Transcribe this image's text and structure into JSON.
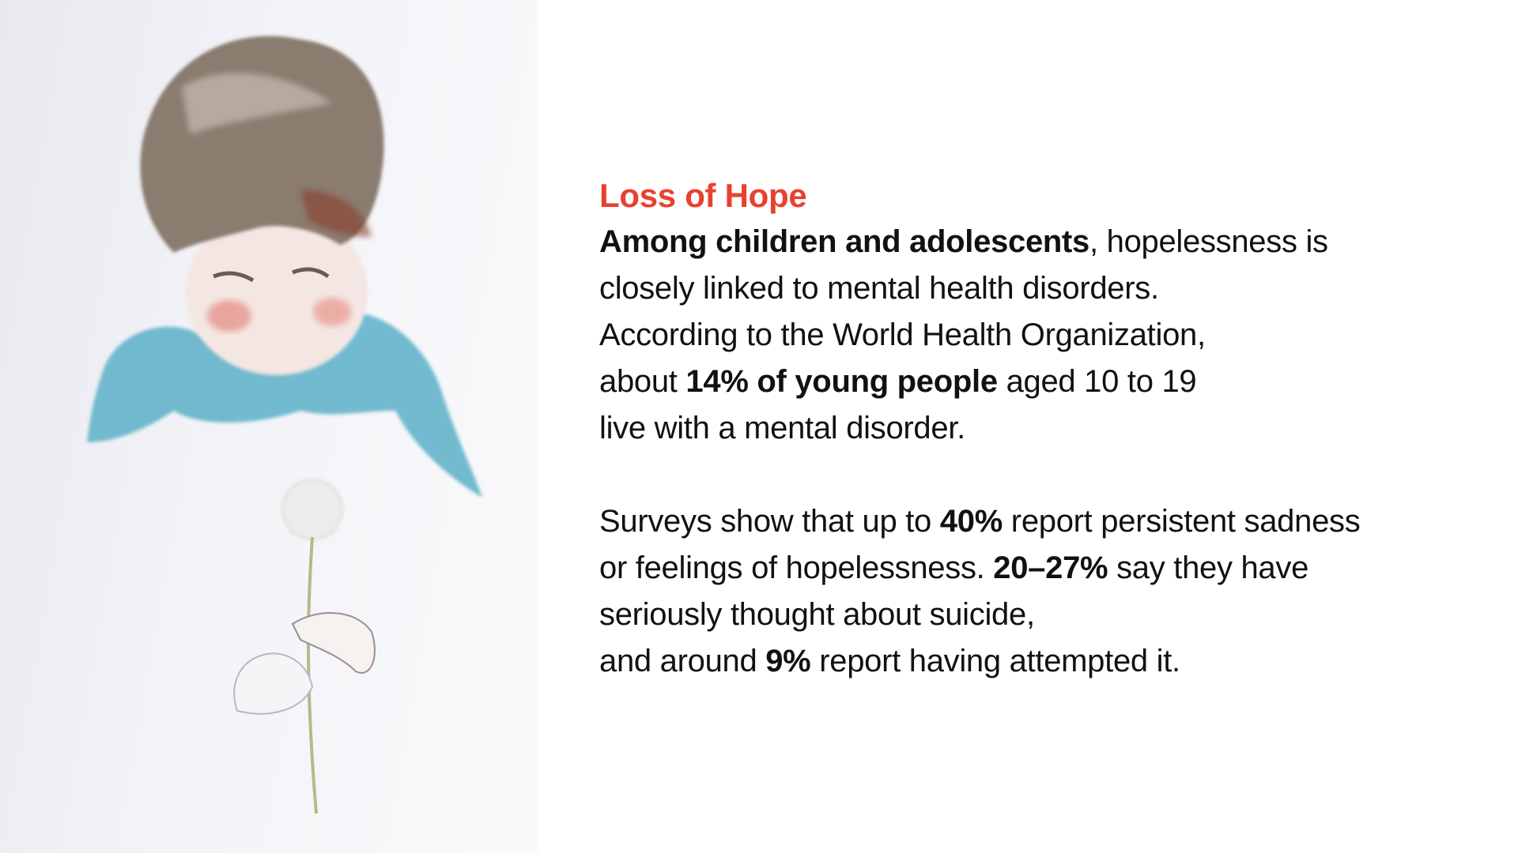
{
  "colors": {
    "title": "#e8412f",
    "text": "#111111"
  },
  "illustration": {
    "subject": "watercolor-child-with-dandelion"
  },
  "title": "Loss of Hope",
  "paragraph1": {
    "line1_bold": "Among children and adolescents",
    "line1_rest": ", hopelessness is",
    "line2": "closely linked to mental health disorders.",
    "line3": "According to the World Health Organization,",
    "line4_pre": "about ",
    "line4_bold": "14% of young people",
    "line4_post": " aged 10 to 19",
    "line5": "live with a mental disorder."
  },
  "paragraph2": {
    "line1_pre": "Surveys show that up to ",
    "line1_bold": "40%",
    "line1_post": " report persistent sadness",
    "line2_pre": "or feelings of hopelessness. ",
    "line2_bold": "20–27%",
    "line2_post": " say they have",
    "line3": "seriously thought about suicide,",
    "line4_pre": "and around ",
    "line4_bold": "9%",
    "line4_post": " report having attempted it."
  }
}
